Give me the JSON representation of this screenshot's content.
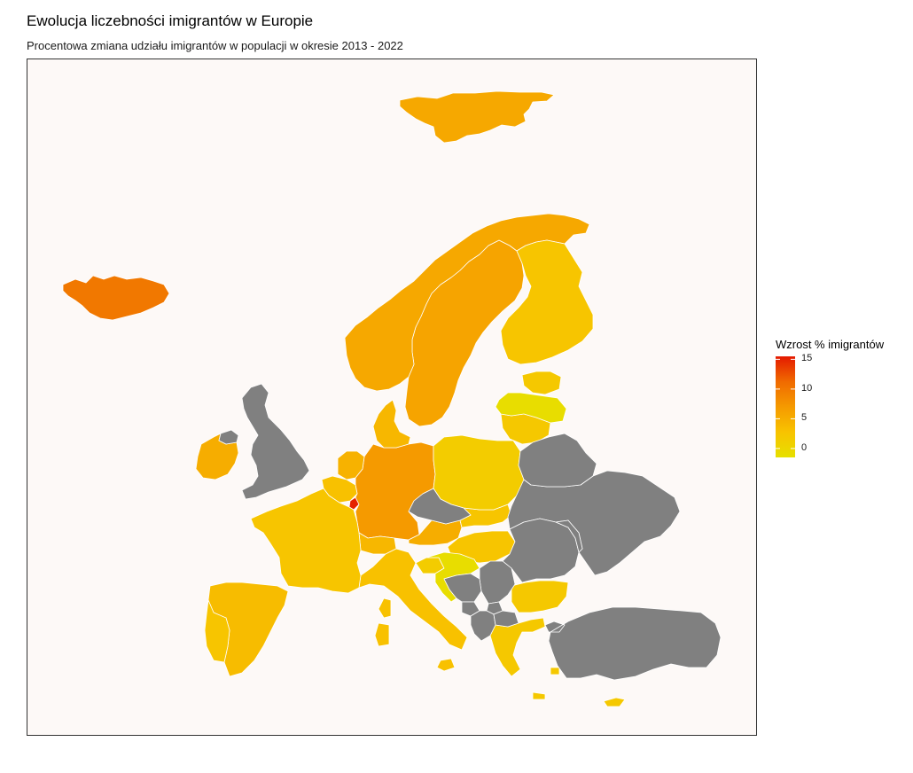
{
  "chart": {
    "title": "Ewolucja liczebności imigrantów w Europie",
    "subtitle": "Procentowa zmiana udziału imigrantów w populacji w okresie 2013 - 2022"
  },
  "legend": {
    "title": "Wzrost % imigrantów",
    "min": -1.5,
    "max": 15.5,
    "ticks": [
      "15",
      "10",
      "5",
      "0"
    ],
    "tick_values": [
      15,
      10,
      5,
      0
    ],
    "gradient": [
      "#e6e000",
      "#f8c300",
      "#f59a00",
      "#f06a00",
      "#e41a00"
    ]
  },
  "colors": {
    "no_data": "#808080",
    "background": "#fdf9f7",
    "border": "#ffffff"
  },
  "chart_data": {
    "type": "choropleth",
    "region": "Europe",
    "variable": "Wzrost % imigrantów",
    "color_scale": [
      "#e6e000",
      "#f8c300",
      "#f59a00",
      "#f06a00",
      "#e41a00"
    ],
    "no_data_color": "#808080",
    "countries": [
      {
        "name": "Luxembourg",
        "value": 15
      },
      {
        "name": "Iceland",
        "value": 10
      },
      {
        "name": "Germany",
        "value": 7
      },
      {
        "name": "Sweden",
        "value": 6
      },
      {
        "name": "Norway",
        "value": 5.5
      },
      {
        "name": "Svalbard",
        "value": 5.5
      },
      {
        "name": "Ireland",
        "value": 5
      },
      {
        "name": "Austria",
        "value": 5
      },
      {
        "name": "Netherlands",
        "value": 4.5
      },
      {
        "name": "Denmark",
        "value": 4
      },
      {
        "name": "Switzerland",
        "value": 4
      },
      {
        "name": "Spain",
        "value": 3.5
      },
      {
        "name": "Malta",
        "value": 3.5
      },
      {
        "name": "Belgium",
        "value": 3
      },
      {
        "name": "Italy",
        "value": 3
      },
      {
        "name": "France",
        "value": 2.5
      },
      {
        "name": "Finland",
        "value": 2.5
      },
      {
        "name": "Portugal",
        "value": 2.5
      },
      {
        "name": "Slovakia",
        "value": 2.5
      },
      {
        "name": "Hungary",
        "value": 2.5
      },
      {
        "name": "Bulgaria",
        "value": 2
      },
      {
        "name": "Estonia",
        "value": 2
      },
      {
        "name": "Lithuania",
        "value": 2
      },
      {
        "name": "Greece",
        "value": 2
      },
      {
        "name": "Cyprus",
        "value": 2
      },
      {
        "name": "Poland",
        "value": 1.5
      },
      {
        "name": "Slovenia",
        "value": 1.5
      },
      {
        "name": "Latvia",
        "value": -1
      },
      {
        "name": "Croatia",
        "value": -1
      },
      {
        "name": "United Kingdom",
        "value": null
      },
      {
        "name": "Czechia",
        "value": null
      },
      {
        "name": "Ukraine",
        "value": null
      },
      {
        "name": "Belarus",
        "value": null
      },
      {
        "name": "Romania",
        "value": null
      },
      {
        "name": "Moldova",
        "value": null
      },
      {
        "name": "Serbia",
        "value": null
      },
      {
        "name": "Bosnia and Herzegovina",
        "value": null
      },
      {
        "name": "Montenegro",
        "value": null
      },
      {
        "name": "Kosovo",
        "value": null
      },
      {
        "name": "Albania",
        "value": null
      },
      {
        "name": "North Macedonia",
        "value": null
      },
      {
        "name": "Turkey",
        "value": null
      },
      {
        "name": "Northern Ireland",
        "value": null
      }
    ]
  }
}
